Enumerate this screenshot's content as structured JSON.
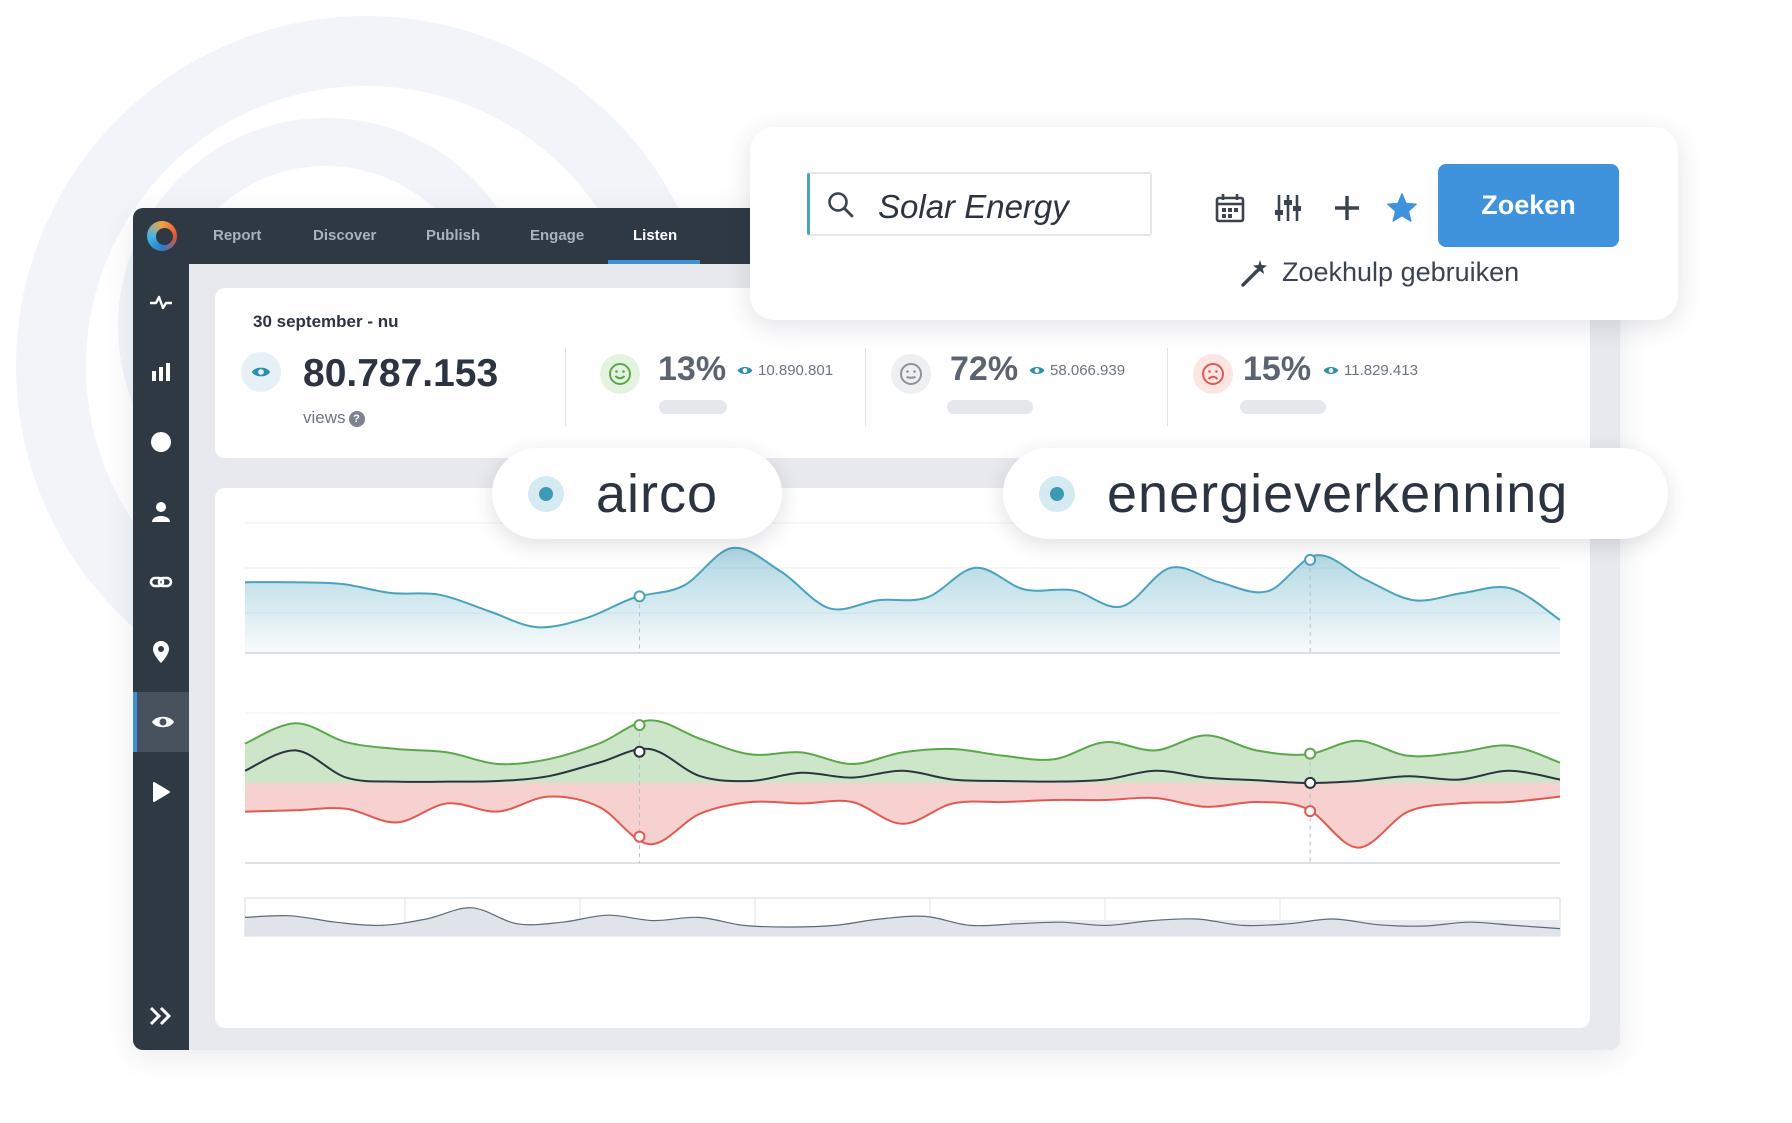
{
  "nav": {
    "tabs": [
      {
        "label": "Report"
      },
      {
        "label": "Discover"
      },
      {
        "label": "Publish"
      },
      {
        "label": "Engage"
      },
      {
        "label": "Listen"
      }
    ],
    "active_tab": "Listen"
  },
  "sidebar": {
    "items": [
      {
        "icon": "activity-icon"
      },
      {
        "icon": "bar-chart-icon"
      },
      {
        "icon": "circle-icon"
      },
      {
        "icon": "user-icon"
      },
      {
        "icon": "link-icon"
      },
      {
        "icon": "location-pin-icon"
      },
      {
        "icon": "eye-icon",
        "active": true
      },
      {
        "icon": "play-icon"
      }
    ],
    "expand_icon": "double-chevron-right-icon"
  },
  "stats": {
    "date_range": "30 september - nu",
    "total_views": "80.787.153",
    "views_label": "views",
    "help_mark": "?",
    "sentiments": [
      {
        "name": "positive",
        "percent": "13%",
        "count": "10.890.801",
        "color": "#5aa84a"
      },
      {
        "name": "neutral",
        "percent": "72%",
        "count": "58.066.939",
        "color": "#8a929c"
      },
      {
        "name": "negative",
        "percent": "15%",
        "count": "11.829.413",
        "color": "#e05a52"
      }
    ]
  },
  "search": {
    "query": "Solar Energy",
    "button_label": "Zoeken",
    "help_label": "Zoekhulp gebruiken",
    "tools": [
      "calendar-icon",
      "sliders-icon",
      "plus-icon",
      "star-icon"
    ]
  },
  "keywords": [
    "airco",
    "energieverkenning"
  ],
  "colors": {
    "accent": "#3f92dc",
    "teal": "#4aa3bd",
    "positive": "#5aa84a",
    "negative": "#e05a52",
    "dark": "#2e3944"
  },
  "chart_data": [
    {
      "type": "area",
      "series": [
        {
          "values": [
            0.62,
            0.62,
            0.6,
            0.5,
            0.48,
            0.3,
            0.12,
            0.22,
            0.45,
            0.58,
            1.0,
            0.74,
            0.33,
            0.42,
            0.45,
            0.78,
            0.54,
            0.53,
            0.35,
            0.78,
            0.62,
            0.52,
            0.92,
            0.65,
            0.42,
            0.5,
            0.55,
            0.2
          ]
        }
      ]
    },
    {
      "type": "area",
      "series": [
        {
          "values": [
            0.58,
            0.88,
            0.6,
            0.5,
            0.45,
            0.28,
            0.35,
            0.58,
            0.92,
            0.65,
            0.42,
            0.45,
            0.28,
            0.45,
            0.5,
            0.4,
            0.35,
            0.6,
            0.48,
            0.7,
            0.48,
            0.42,
            0.62,
            0.4,
            0.45,
            0.55,
            0.3
          ]
        },
        {
          "values": [
            0.18,
            0.48,
            0.08,
            0.02,
            0.02,
            0.03,
            0.1,
            0.3,
            0.5,
            0.1,
            0.03,
            0.15,
            0.08,
            0.18,
            0.05,
            0.03,
            0.02,
            0.05,
            0.18,
            0.08,
            0.04,
            0.0,
            0.03,
            0.1,
            0.05,
            0.18,
            0.05
          ]
        },
        {
          "values": [
            -0.42,
            -0.4,
            -0.38,
            -0.58,
            -0.3,
            -0.42,
            -0.2,
            -0.35,
            -0.9,
            -0.45,
            -0.28,
            -0.3,
            -0.28,
            -0.6,
            -0.3,
            -0.28,
            -0.25,
            -0.25,
            -0.22,
            -0.35,
            -0.28,
            -0.38,
            -0.95,
            -0.42,
            -0.3,
            -0.28,
            -0.2
          ]
        }
      ]
    },
    {
      "type": "area",
      "series": [
        {
          "values": [
            0.55,
            0.6,
            0.4,
            0.3,
            0.5,
            0.85,
            0.35,
            0.4,
            0.62,
            0.45,
            0.55,
            0.3,
            0.25,
            0.3,
            0.5,
            0.58,
            0.3,
            0.35,
            0.4,
            0.3,
            0.45,
            0.5,
            0.3,
            0.35,
            0.5,
            0.32,
            0.28,
            0.4,
            0.3,
            0.2
          ]
        }
      ]
    }
  ]
}
